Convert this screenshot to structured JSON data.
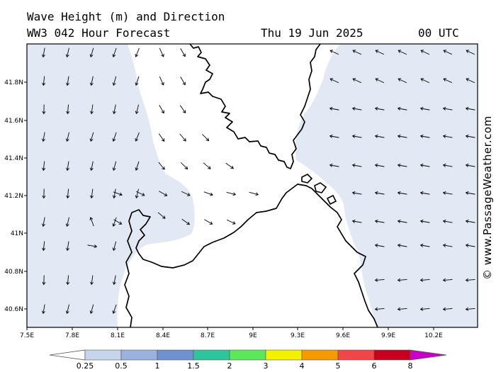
{
  "header": {
    "title": "Wave Height (m) and Direction",
    "model_line": "WW3 042 Hour Forecast",
    "date": "Thu 19 Jun 2025",
    "time": "00 UTC"
  },
  "map": {
    "lon_ticks": [
      "7.5E",
      "7.8E",
      "8.1E",
      "8.4E",
      "8.7E",
      "9E",
      "9.3E",
      "9.6E",
      "9.9E",
      "10.2E"
    ],
    "lat_ticks": [
      "41.8N",
      "41.6N",
      "41.4N",
      "41.2N",
      "41N",
      "40.8N",
      "40.6N"
    ],
    "lon_range": [
      7.5,
      10.5
    ],
    "lat_range": [
      40.5,
      42.0
    ],
    "land_color": "#ffffff",
    "sea_shade_color": "#e2e9f5",
    "coast_color": "#000000"
  },
  "watermark": "© www.PassageWeather.com",
  "legend": {
    "labels": [
      "0.25",
      "0.5",
      "1",
      "1.5",
      "2",
      "3",
      "4",
      "5",
      "6",
      "8"
    ],
    "colors": [
      "#e2e9f5",
      "#c6d4ec",
      "#9ab2de",
      "#6f91cd",
      "#2fc59c",
      "#5ce85a",
      "#f2f200",
      "#f59a00",
      "#f1454a",
      "#c8001f",
      "#c800c8"
    ]
  }
}
